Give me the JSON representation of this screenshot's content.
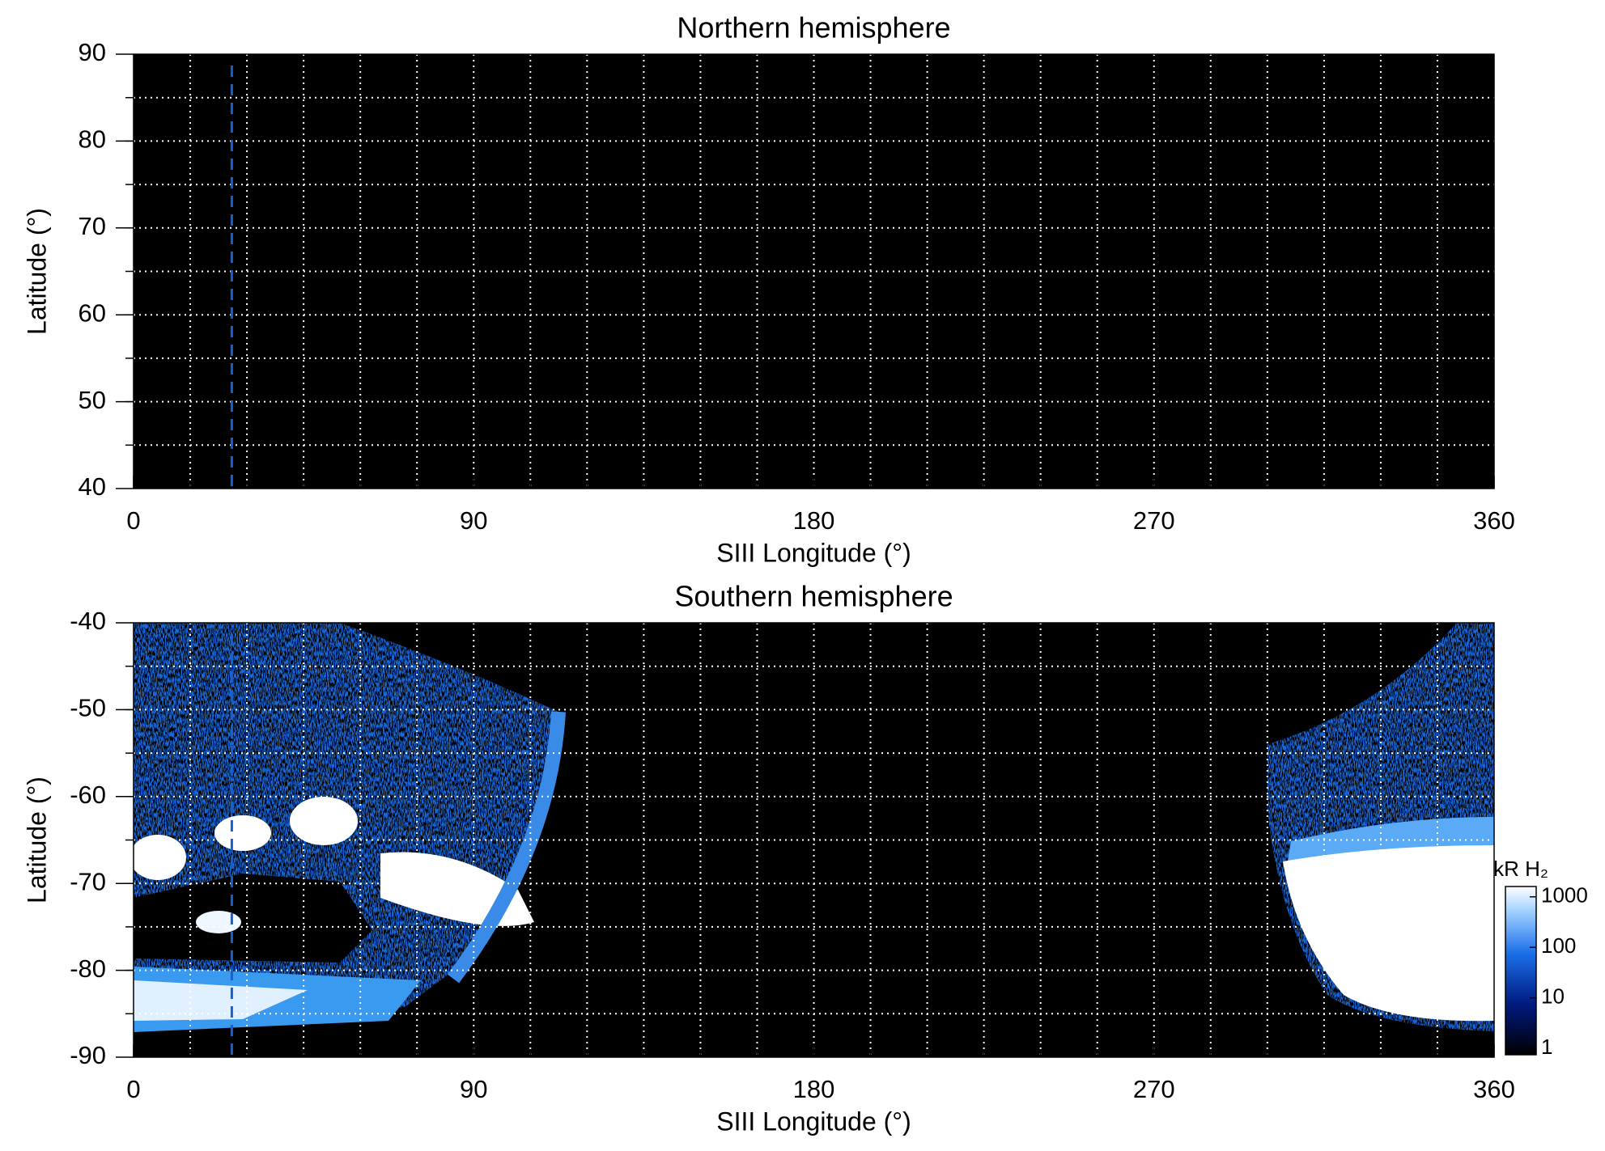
{
  "chart_data": [
    {
      "type": "map",
      "title": "Northern hemisphere",
      "x_label": "SIII Longitude (°)",
      "y_label": "Latitude (°)",
      "xlim": [
        0,
        360
      ],
      "xticks": [
        0,
        90,
        180,
        270,
        360
      ],
      "ylim": [
        40,
        90
      ],
      "yticks": [
        40,
        50,
        60,
        70,
        80,
        90
      ],
      "xgrid": [
        15,
        30,
        45,
        60,
        75,
        90,
        105,
        120,
        135,
        150,
        165,
        180,
        195,
        210,
        225,
        240,
        255,
        270,
        285,
        300,
        315,
        330,
        345
      ],
      "ygrid": [
        45,
        50,
        55,
        60,
        65,
        70,
        75,
        80,
        85
      ],
      "vline": {
        "x": 26,
        "color": "#1a5fd0"
      }
    },
    {
      "type": "map",
      "title": "Southern hemisphere",
      "x_label": "SIII Longitude (°)",
      "y_label": "Latitude (°)",
      "xlim": [
        0,
        360
      ],
      "xticks": [
        0,
        90,
        180,
        270,
        360
      ],
      "ylim": [
        -90,
        -40
      ],
      "yticks": [
        -90,
        -80,
        -70,
        -60,
        -50,
        -40
      ],
      "xgrid": [
        15,
        30,
        45,
        60,
        75,
        90,
        105,
        120,
        135,
        150,
        165,
        180,
        195,
        210,
        225,
        240,
        255,
        270,
        285,
        300,
        315,
        330,
        345
      ],
      "ygrid": [
        -85,
        -80,
        -75,
        -70,
        -65,
        -60,
        -55,
        -50,
        -45
      ],
      "vline": {
        "x": 26,
        "color": "#1a5fd0"
      },
      "colorbar": {
        "label": "kR H₂",
        "scale": "log",
        "lim": [
          0.75,
          1600
        ],
        "ticks": [
          1,
          10,
          100,
          1000
        ]
      }
    }
  ]
}
